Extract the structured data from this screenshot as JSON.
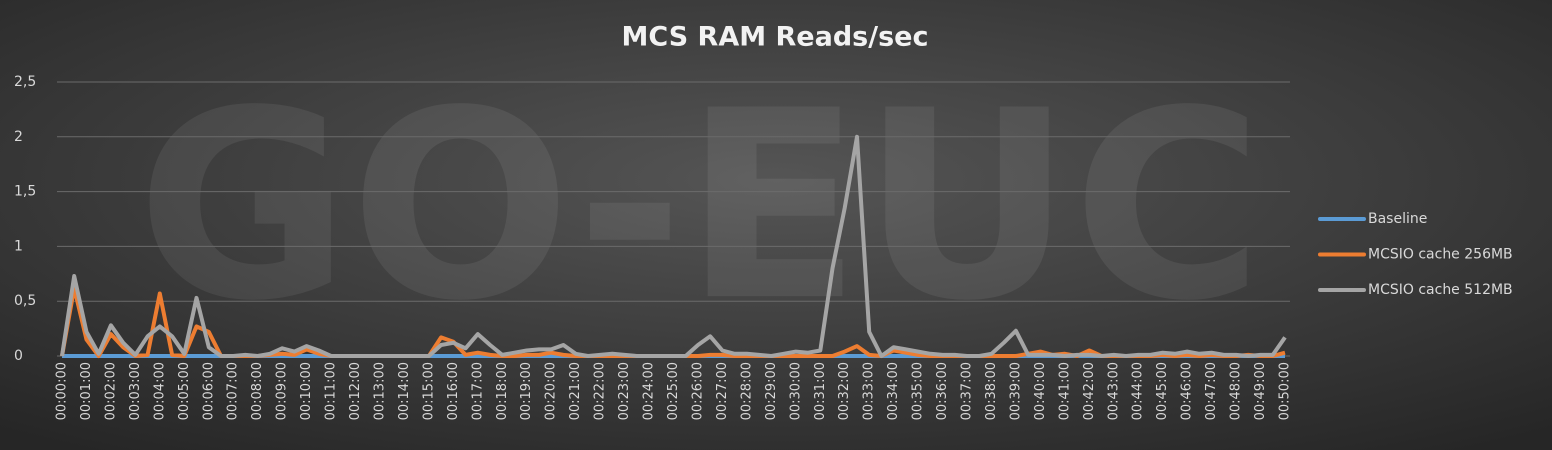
{
  "chart_data": {
    "type": "line",
    "title": "MCS RAM Reads/sec",
    "watermark": "GO-EUC",
    "categories": [
      "00:00:00",
      null,
      "00:01:00",
      null,
      "00:02:00",
      null,
      "00:03:00",
      null,
      "00:04:00",
      null,
      "00:05:00",
      null,
      "00:06:00",
      null,
      "00:07:00",
      null,
      "00:08:00",
      null,
      "00:09:00",
      null,
      "00:10:00",
      null,
      "00:11:00",
      null,
      "00:12:00",
      null,
      "00:13:00",
      null,
      "00:14:00",
      null,
      "00:15:00",
      null,
      "00:16:00",
      null,
      "00:17:00",
      null,
      "00:18:00",
      null,
      "00:19:00",
      null,
      "00:20:00",
      null,
      "00:21:00",
      null,
      "00:22:00",
      null,
      "00:23:00",
      null,
      "00:24:00",
      null,
      "00:25:00",
      null,
      "00:26:00",
      null,
      "00:27:00",
      null,
      "00:28:00",
      null,
      "00:29:00",
      null,
      "00:30:00",
      null,
      "00:31:00",
      null,
      "00:32:00",
      null,
      "00:33:00",
      null,
      "00:34:00",
      null,
      "00:35:00",
      null,
      "00:36:00",
      null,
      "00:37:00",
      null,
      "00:38:00",
      null,
      "00:39:00",
      null,
      "00:40:00",
      null,
      "00:41:00",
      null,
      "00:42:00",
      null,
      "00:43:00",
      null,
      "00:44:00",
      null,
      "00:45:00",
      null,
      "00:46:00",
      null,
      "00:47:00",
      null,
      "00:48:00",
      null,
      "00:49:00",
      null,
      "00:50:00"
    ],
    "series": [
      {
        "name": "Baseline",
        "color": "#5b9bd5",
        "values": [
          0,
          0,
          0,
          0,
          0,
          0,
          0,
          0,
          0,
          0,
          0,
          0,
          0,
          0,
          0,
          0,
          0,
          0,
          0,
          0,
          0,
          0,
          0,
          0,
          0,
          0,
          0,
          0,
          0,
          0,
          0,
          0,
          0,
          0,
          0,
          0,
          0,
          0,
          0,
          0,
          0,
          0,
          0,
          0,
          0,
          0,
          0,
          0,
          0,
          0,
          0,
          0,
          0,
          0,
          0,
          0,
          0,
          0,
          0,
          0,
          0,
          0,
          0,
          0,
          0,
          0,
          0,
          0,
          0,
          0,
          0,
          0,
          0,
          0,
          0,
          0,
          0,
          0,
          0,
          0,
          0,
          0,
          0,
          0,
          0,
          0,
          0,
          0,
          0,
          0,
          0,
          0,
          0,
          0,
          0,
          0,
          0,
          0,
          0,
          0,
          0
        ]
      },
      {
        "name": "MCSIO cache 256MB",
        "color": "#ed7d31",
        "values": [
          0,
          0.62,
          0.15,
          0,
          0.2,
          0.08,
          0,
          0.01,
          0.57,
          0.01,
          0,
          0.27,
          0.22,
          0,
          0,
          0,
          0,
          0.01,
          0.02,
          0.01,
          0.06,
          0.02,
          0,
          0,
          0,
          0,
          0,
          0,
          0,
          0,
          0,
          0.17,
          0.13,
          0.01,
          0.03,
          0.01,
          0,
          0,
          0.01,
          0.01,
          0.03,
          0.01,
          0,
          0,
          0,
          0,
          0,
          0,
          0,
          0,
          0,
          0,
          0,
          0.01,
          0.01,
          0,
          0,
          0,
          0,
          0,
          0,
          0,
          0,
          0,
          0.04,
          0.09,
          0.01,
          0,
          0.05,
          0.03,
          0.01,
          0,
          0,
          0,
          0,
          0,
          0,
          0,
          0,
          0.02,
          0.04,
          0.01,
          0.02,
          0,
          0.05,
          0,
          0,
          0,
          0,
          0,
          0.01,
          0,
          0.01,
          0,
          0.01,
          0,
          0,
          0.01,
          0,
          0,
          0.03
        ]
      },
      {
        "name": "MCSIO cache 512MB",
        "color": "#a5a5a5",
        "values": [
          0,
          0.73,
          0.22,
          0.02,
          0.28,
          0.12,
          0.01,
          0.18,
          0.27,
          0.18,
          0.02,
          0.53,
          0.08,
          0,
          0,
          0.01,
          0,
          0.02,
          0.07,
          0.04,
          0.09,
          0.05,
          0,
          0,
          0,
          0,
          0,
          0,
          0,
          0,
          0,
          0.1,
          0.12,
          0.07,
          0.2,
          0.1,
          0.01,
          0.03,
          0.05,
          0.06,
          0.06,
          0.1,
          0.02,
          0,
          0.01,
          0.02,
          0.01,
          0,
          0,
          0,
          0,
          0,
          0.1,
          0.18,
          0.05,
          0.02,
          0.02,
          0.01,
          0,
          0.02,
          0.04,
          0.03,
          0.05,
          0.8,
          1.35,
          2,
          0.22,
          0,
          0.08,
          0.06,
          0.04,
          0.02,
          0.01,
          0.01,
          0,
          0,
          0.02,
          0.12,
          0.23,
          0.01,
          0.01,
          0.01,
          0,
          0.01,
          0.01,
          0,
          0.01,
          0,
          0.01,
          0.01,
          0.03,
          0.02,
          0.04,
          0.02,
          0.03,
          0.01,
          0.01,
          0,
          0.01,
          0.01,
          0.17
        ]
      }
    ],
    "ylim": [
      0,
      2.5
    ],
    "yticks": [
      0,
      {
        "value": 0.5,
        "label": "0,5"
      },
      1,
      {
        "value": 1.5,
        "label": "1,5"
      },
      2,
      {
        "value": 2.5,
        "label": "2,5"
      }
    ],
    "grid": true,
    "legend": "right"
  }
}
